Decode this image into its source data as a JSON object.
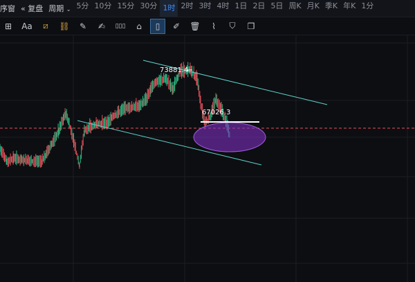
{
  "toolbar": {
    "partial_left": "序窗",
    "replay": "复盘",
    "period": "周期",
    "periods": [
      "5分",
      "10分",
      "15分",
      "30分",
      "1时",
      "2时",
      "3时",
      "4时",
      "1日",
      "2日",
      "5日",
      "周K",
      "月K",
      "季K",
      "年K",
      "1分"
    ],
    "active_period": "1时"
  },
  "tools": [
    {
      "icon": "crosshair-box-icon",
      "glyph": "⊞"
    },
    {
      "icon": "text-icon",
      "glyph": "Aa"
    },
    {
      "icon": "magnet-ruler-icon",
      "glyph": "⧄"
    },
    {
      "icon": "link-icon",
      "glyph": "⛓"
    },
    {
      "icon": "ruler-icon",
      "glyph": "✎"
    },
    {
      "icon": "pen-icon",
      "glyph": "✍"
    },
    {
      "icon": "candles-icon",
      "glyph": "▯▯▯"
    },
    {
      "icon": "lock-icon",
      "glyph": "⌂"
    },
    {
      "icon": "bookmark-icon",
      "glyph": "▯"
    },
    {
      "icon": "edit-doc-icon",
      "glyph": "✐"
    },
    {
      "icon": "trash-icon",
      "glyph": "🗑"
    },
    {
      "icon": "paperclip-icon",
      "glyph": "⌇"
    },
    {
      "icon": "filter-icon",
      "glyph": "⛉"
    },
    {
      "icon": "copy-icon",
      "glyph": "❐"
    }
  ],
  "chart": {
    "high_label": "73881.4",
    "low_label": "67026.3",
    "colors": {
      "up": "#2ebd85",
      "down": "#e8505b",
      "channel": "#5fd3cf",
      "ellipse": "#7b2fbf",
      "dashed": "#e8505b"
    }
  }
}
